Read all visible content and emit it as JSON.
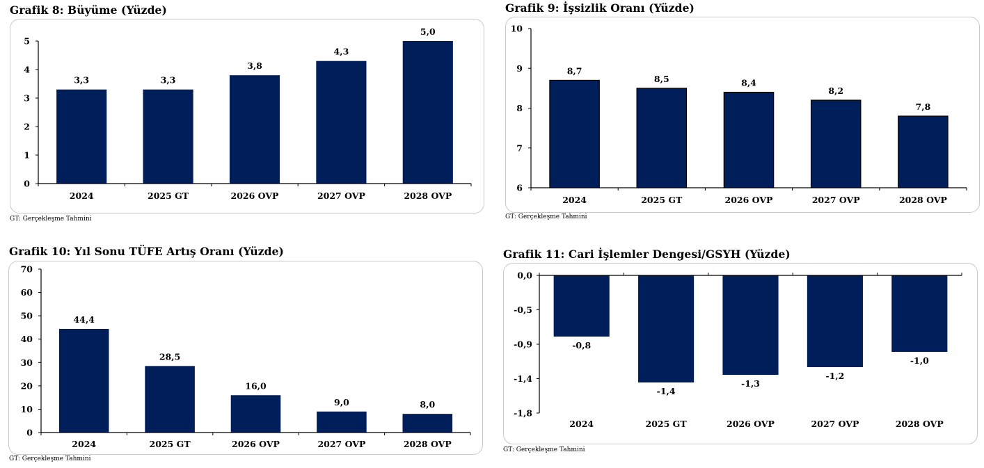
{
  "bar_color": "#001e5a",
  "chart_data": [
    {
      "type": "bar",
      "title": "Grafik 8: Büyüme (Yüzde)",
      "categories": [
        "2024",
        "2025 GT",
        "2026 OVP",
        "2027 OVP",
        "2028 OVP"
      ],
      "values": [
        3.3,
        3.3,
        3.8,
        4.3,
        5.0
      ],
      "value_labels": [
        "3,3",
        "3,3",
        "3,8",
        "4,3",
        "5,0"
      ],
      "ylim": [
        0,
        5
      ],
      "yticks": [
        0,
        1,
        2,
        3,
        4,
        5
      ],
      "ytick_labels": [
        "0",
        "1",
        "2",
        "3",
        "4",
        "5"
      ],
      "bar_outline": false,
      "grid": false,
      "footnote": "GT: Gerçekleşme Tahmini"
    },
    {
      "type": "bar",
      "title": "Grafik 9: İşsizlik Oranı (Yüzde)",
      "categories": [
        "2024",
        "2025 GT",
        "2026 OVP",
        "2027 OVP",
        "2028 OVP"
      ],
      "values": [
        8.7,
        8.5,
        8.4,
        8.2,
        7.8
      ],
      "value_labels": [
        "8,7",
        "8,5",
        "8,4",
        "8,2",
        "7,8"
      ],
      "ylim": [
        6,
        10
      ],
      "yticks": [
        6,
        7,
        8,
        9,
        10
      ],
      "ytick_labels": [
        "6",
        "7",
        "8",
        "9",
        "10"
      ],
      "bar_outline": true,
      "grid": false,
      "footnote": "GT: Gerçekleşme Tahmini"
    },
    {
      "type": "bar",
      "title": "Grafik 10: Yıl Sonu TÜFE Artış Oranı (Yüzde)",
      "categories": [
        "2024",
        "2025 GT",
        "2026 OVP",
        "2027 OVP",
        "2028 OVP"
      ],
      "values": [
        44.4,
        28.5,
        16.0,
        9.0,
        8.0
      ],
      "value_labels": [
        "44,4",
        "28,5",
        "16,0",
        "9,0",
        "8,0"
      ],
      "ylim": [
        0,
        70
      ],
      "yticks": [
        0,
        10,
        20,
        30,
        40,
        50,
        60,
        70
      ],
      "ytick_labels": [
        "0",
        "10",
        "20",
        "30",
        "40",
        "50",
        "60",
        "70"
      ],
      "bar_outline": false,
      "grid": false,
      "footnote": "GT: Gerçekleşme Tahmini"
    },
    {
      "type": "bar",
      "title": "Grafik 11: Cari İşlemler Dengesi/GSYH (Yüzde)",
      "categories": [
        "2024",
        "2025 GT",
        "2026 OVP",
        "2027 OVP",
        "2028 OVP"
      ],
      "values": [
        -0.8,
        -1.4,
        -1.3,
        -1.2,
        -1.0
      ],
      "value_labels": [
        "-0,8",
        "-1,4",
        "-1,3",
        "-1,2",
        "-1,0"
      ],
      "ylim": [
        -1.8,
        0.0
      ],
      "yticks": [
        0.0,
        -0.45,
        -0.9,
        -1.35,
        -1.8
      ],
      "ytick_labels": [
        "0,0",
        "-0,5",
        "-0,9",
        "-1,4",
        "-1,8"
      ],
      "bar_outline": false,
      "grid": false,
      "footnote": "GT: Gerçekleşme Tahmini"
    }
  ]
}
